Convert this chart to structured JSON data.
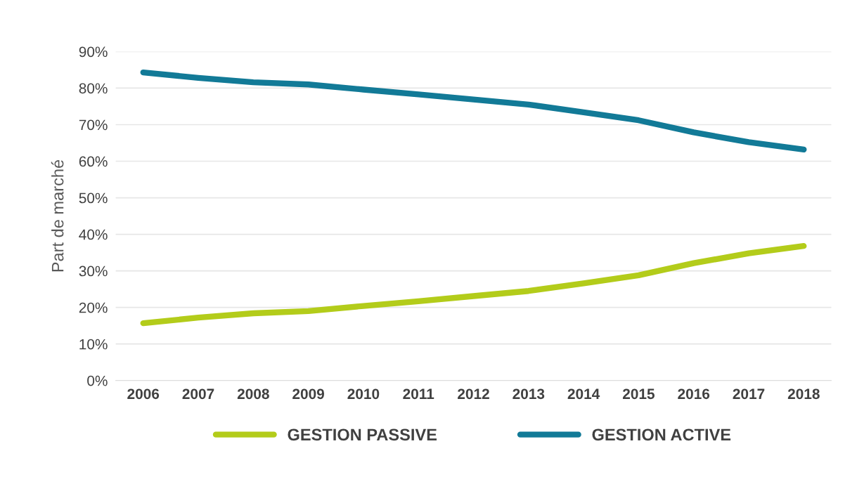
{
  "chart_data": {
    "type": "line",
    "ylabel": "Part de marché",
    "categories": [
      "2006",
      "2007",
      "2008",
      "2009",
      "2010",
      "2011",
      "2012",
      "2013",
      "2014",
      "2015",
      "2016",
      "2017",
      "2018"
    ],
    "series": [
      {
        "name": "GESTION PASSIVE",
        "color": "#b3cc1a",
        "values": [
          15.7,
          17.2,
          18.4,
          19.0,
          20.4,
          21.7,
          23.1,
          24.5,
          26.6,
          28.8,
          32.1,
          34.8,
          36.8
        ]
      },
      {
        "name": "GESTION ACTIVE",
        "color": "#127a97",
        "values": [
          84.3,
          82.8,
          81.6,
          81.0,
          79.6,
          78.3,
          76.9,
          75.5,
          73.4,
          71.2,
          67.9,
          65.2,
          63.2
        ]
      }
    ],
    "ylim": [
      0,
      90
    ],
    "yticks": [
      {
        "value": 0,
        "label": "0%"
      },
      {
        "value": 10,
        "label": "10%"
      },
      {
        "value": 20,
        "label": "20%"
      },
      {
        "value": 30,
        "label": "30%"
      },
      {
        "value": 40,
        "label": "40%"
      },
      {
        "value": 50,
        "label": "50%"
      },
      {
        "value": 60,
        "label": "60%"
      },
      {
        "value": 70,
        "label": "70%"
      },
      {
        "value": 80,
        "label": "80%"
      },
      {
        "value": 90,
        "label": "90%"
      }
    ],
    "grid": "y",
    "legend": "bottom",
    "marker": "none",
    "line_style": "solid"
  }
}
